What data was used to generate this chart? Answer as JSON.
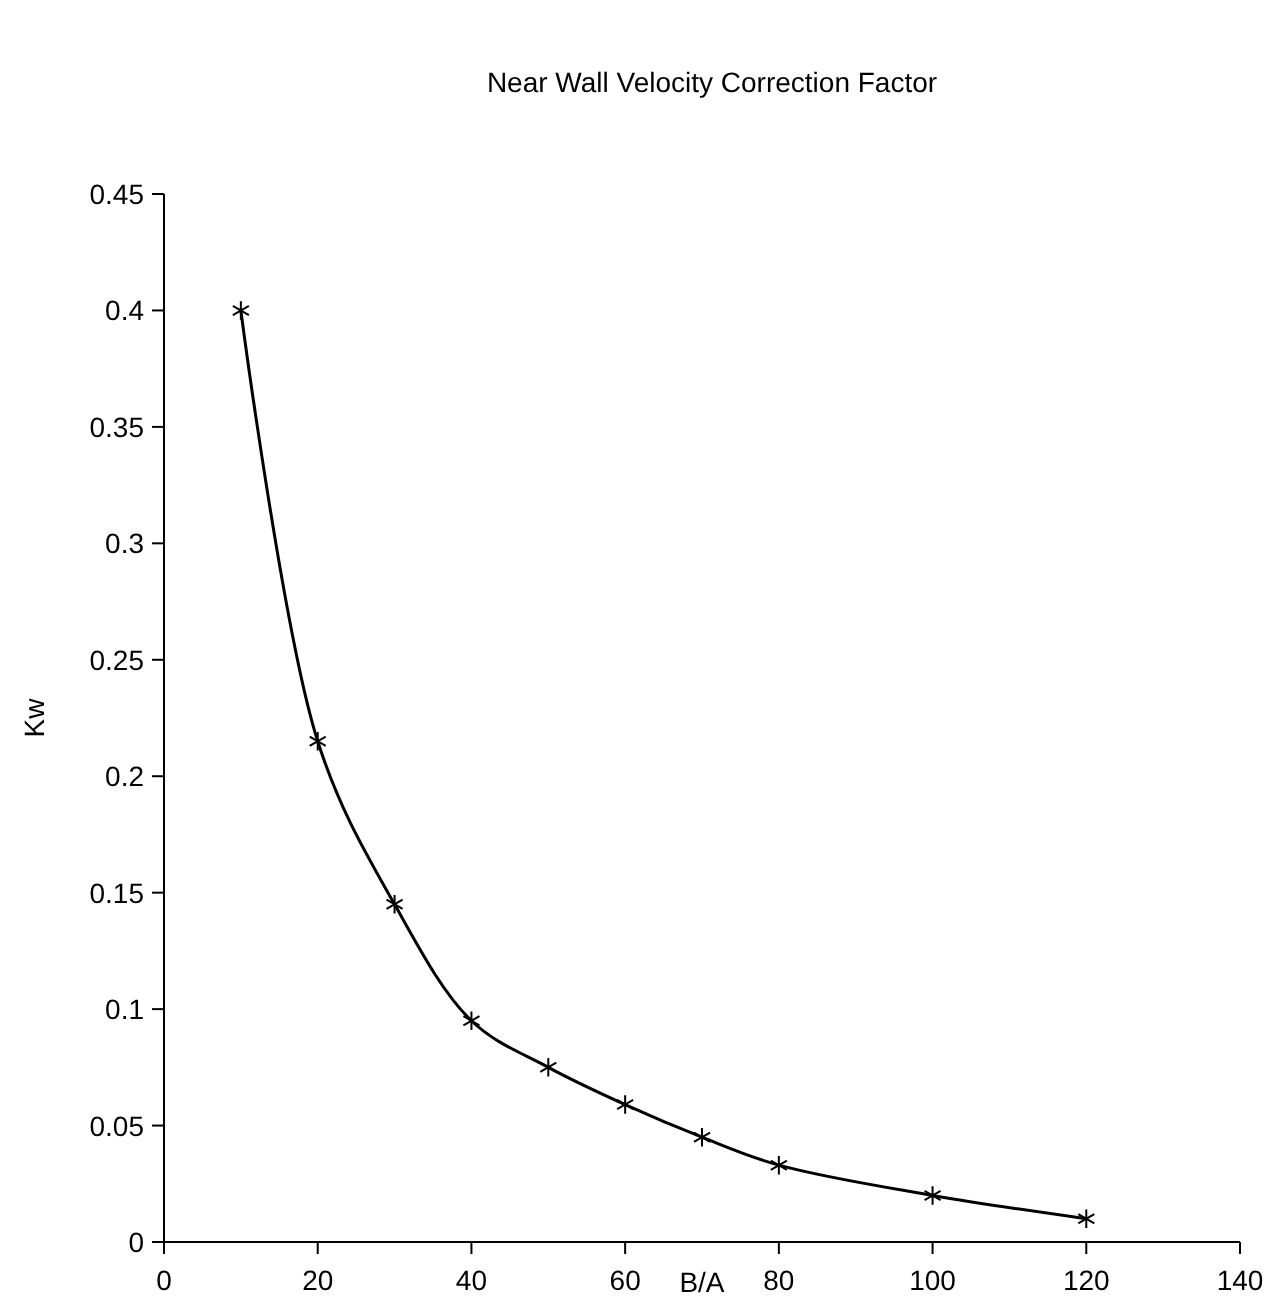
{
  "chart_data": {
    "type": "line",
    "title": "Near Wall Velocity Correction Factor",
    "xlabel": "B/A",
    "ylabel": "Kw",
    "x": [
      10,
      20,
      30,
      40,
      50,
      60,
      70,
      80,
      100,
      120
    ],
    "series": [
      {
        "color": "#000000",
        "values": [
          0.4,
          0.215,
          0.145,
          0.095,
          0.075,
          0.059,
          0.045,
          0.033,
          0.02,
          0.01
        ]
      }
    ],
    "xlim": [
      0,
      140
    ],
    "xticks": [
      0,
      20,
      40,
      60,
      80,
      100,
      120,
      140
    ],
    "ylim": [
      0,
      0.45
    ],
    "yticks": [
      0,
      0.05,
      0.1,
      0.15,
      0.2,
      0.25,
      0.3,
      0.35,
      0.4,
      0.45
    ],
    "marker": "cross",
    "grid": false
  }
}
